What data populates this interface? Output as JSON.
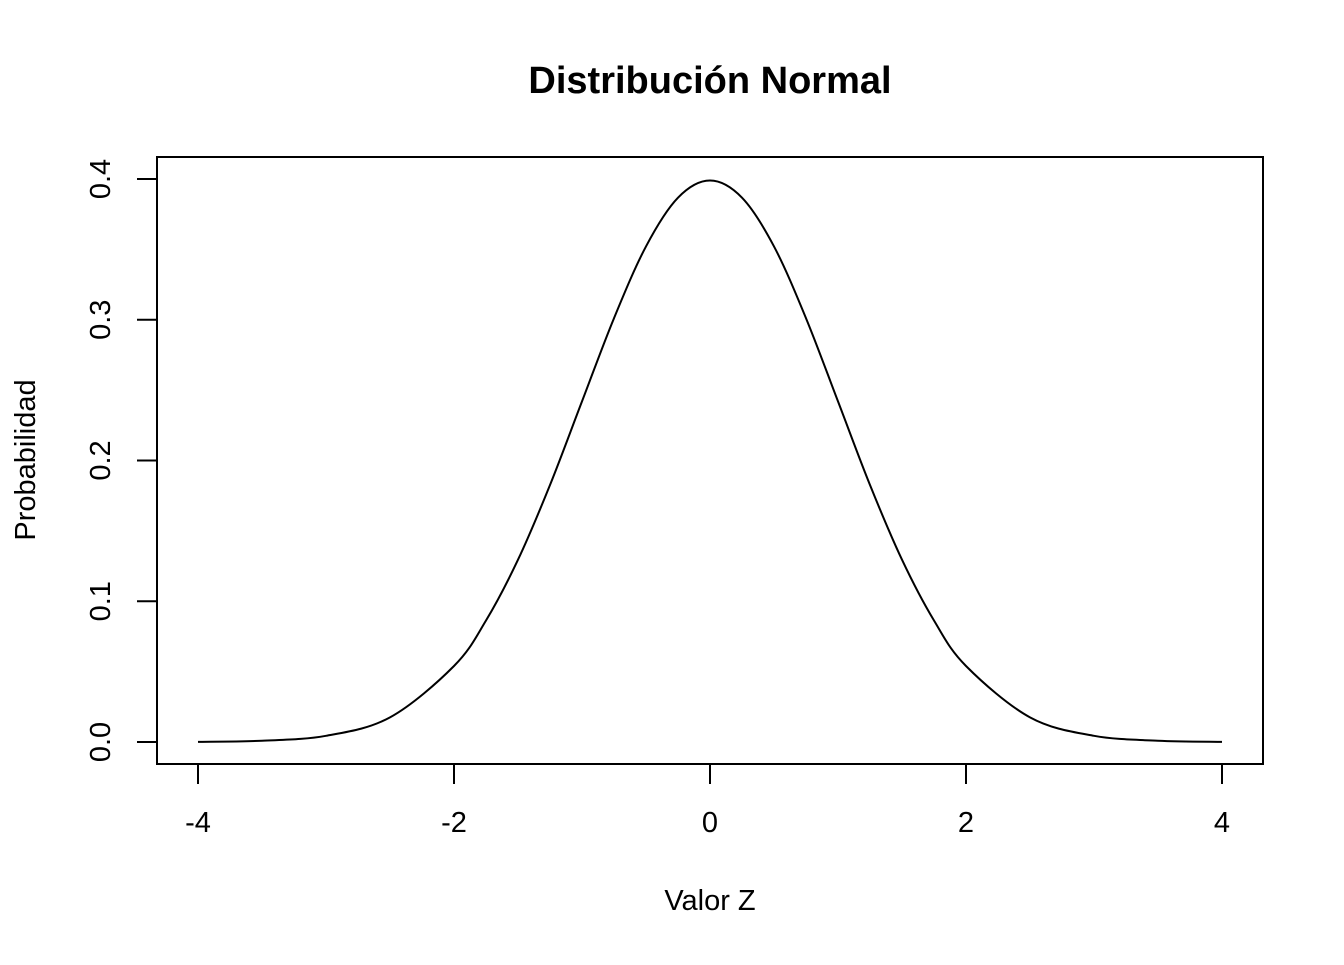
{
  "chart_data": {
    "type": "line",
    "title": "Distribución Normal",
    "xlabel": "Valor Z",
    "ylabel": "Probabilidad",
    "xlim": [
      -4,
      4
    ],
    "ylim": [
      0,
      0.4
    ],
    "x_ticks": [
      -4,
      -2,
      0,
      2,
      4
    ],
    "x_tick_labels": [
      "-4",
      "-2",
      "0",
      "2",
      "4"
    ],
    "y_ticks": [
      0,
      0.1,
      0.2,
      0.3,
      0.4
    ],
    "y_tick_labels": [
      "0.0",
      "0.1",
      "0.2",
      "0.3",
      "0.4"
    ],
    "grid": false,
    "series": [
      {
        "color": "#000000",
        "x": [
          -4,
          -3.5,
          -3,
          -2.5,
          -2,
          -1.75,
          -1.5,
          -1.25,
          -1,
          -0.75,
          -0.5,
          -0.25,
          0,
          0.25,
          0.5,
          0.75,
          1,
          1.25,
          1.5,
          1.75,
          2,
          2.5,
          3,
          3.5,
          4
        ],
        "y": [
          0.0001,
          0.0009,
          0.0044,
          0.0175,
          0.054,
          0.0863,
          0.1295,
          0.1826,
          0.242,
          0.3011,
          0.3521,
          0.3867,
          0.3989,
          0.3867,
          0.3521,
          0.3011,
          0.242,
          0.1826,
          0.1295,
          0.0863,
          0.054,
          0.0175,
          0.0044,
          0.0009,
          0.0001
        ]
      }
    ]
  }
}
